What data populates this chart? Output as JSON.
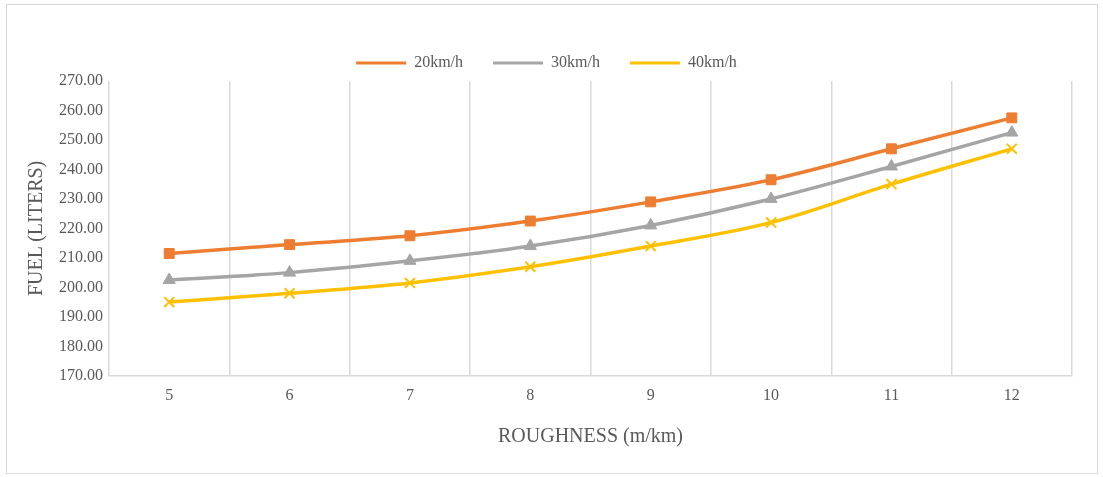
{
  "chart_data": {
    "type": "line",
    "xlabel": "ROUGHNESS (m/km)",
    "ylabel": "FUEL (LITERS)",
    "categories": [
      "5",
      "6",
      "7",
      "8",
      "9",
      "10",
      "11",
      "12"
    ],
    "series": [
      {
        "name": "20km/h",
        "color": "#ed7d31",
        "marker": "square",
        "values": [
          211.5,
          214.5,
          217.5,
          222.5,
          229,
          236.5,
          247,
          257.5
        ]
      },
      {
        "name": "30km/h",
        "color": "#a5a5a5",
        "marker": "triangle",
        "values": [
          202.5,
          205,
          209,
          214,
          221,
          230,
          241,
          252.5
        ]
      },
      {
        "name": "40km/h",
        "color": "#ffc000",
        "marker": "cross",
        "values": [
          195,
          198,
          201.5,
          207,
          214,
          222,
          235,
          247
        ]
      }
    ],
    "ylim": [
      170,
      270
    ],
    "yticks": [
      {
        "value": 170,
        "label": "170.00"
      },
      {
        "value": 180,
        "label": "180.00"
      },
      {
        "value": 190,
        "label": "190.00"
      },
      {
        "value": 200,
        "label": "200.00"
      },
      {
        "value": 210,
        "label": "210.00"
      },
      {
        "value": 220,
        "label": "220.00"
      },
      {
        "value": 230,
        "label": "230.00"
      },
      {
        "value": 240,
        "label": "240.00"
      },
      {
        "value": 250,
        "label": "250.00"
      },
      {
        "value": 260,
        "label": "260.00"
      },
      {
        "value": 270,
        "label": "270.00"
      }
    ],
    "grid": "x",
    "legend": "top"
  }
}
